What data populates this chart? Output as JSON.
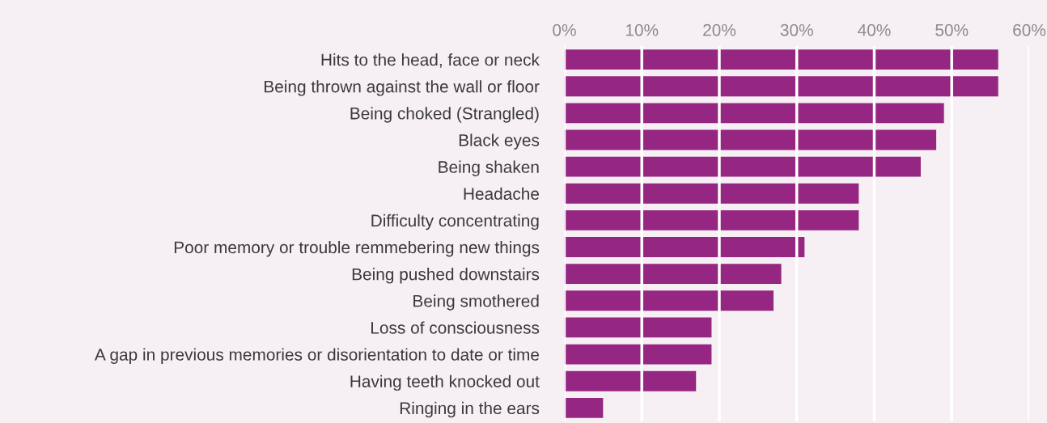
{
  "chart_data": {
    "type": "bar",
    "orientation": "horizontal",
    "categories": [
      "Hits to the head, face or neck",
      "Being thrown against the wall or floor",
      "Being choked (Strangled)",
      "Black eyes",
      "Being shaken",
      "Headache",
      "Difficulty concentrating",
      "Poor memory or trouble remmebering new things",
      "Being pushed downstairs",
      "Being smothered",
      "Loss of consciousness",
      "A gap in previous memories or disorientation to date or time",
      "Having teeth knocked out",
      "Ringing in the ears"
    ],
    "values": [
      56,
      56,
      49,
      48,
      46,
      38,
      38,
      31,
      28,
      27,
      19,
      19,
      17,
      5
    ],
    "color": "#952681",
    "xlim": [
      0,
      60
    ],
    "xticks": [
      {
        "value": 0,
        "label": "0%"
      },
      {
        "value": 10,
        "label": "10%"
      },
      {
        "value": 20,
        "label": "20%"
      },
      {
        "value": 30,
        "label": "30%"
      },
      {
        "value": 40,
        "label": "40%"
      },
      {
        "value": 50,
        "label": "50%"
      },
      {
        "value": 60,
        "label": "60%"
      }
    ],
    "grid": "x"
  }
}
